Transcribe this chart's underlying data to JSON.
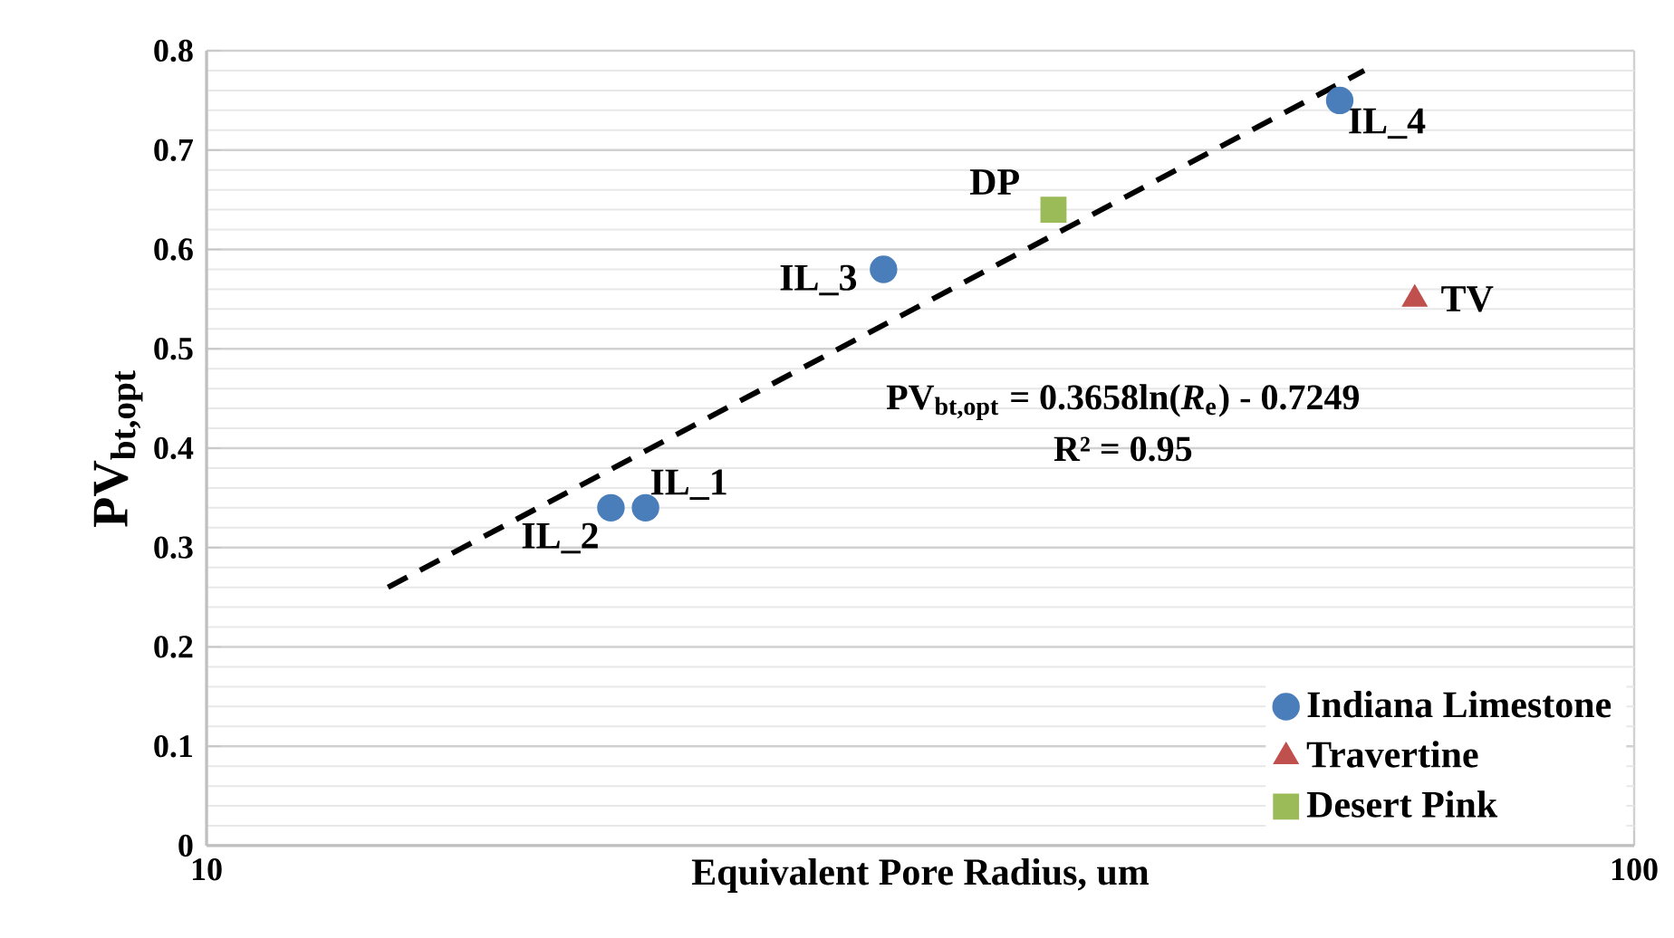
{
  "chart_data": {
    "type": "scatter",
    "xlabel": "Equivalent Pore Radius, um",
    "ylabel": "PV$_{bt,opt}$",
    "log": "x",
    "xlim": [
      10,
      100
    ],
    "xticks": [
      10,
      100
    ],
    "ylim": [
      0,
      0.8
    ],
    "yticks": [
      0,
      0.1,
      0.2,
      0.3,
      0.4,
      0.5,
      0.6,
      0.7,
      0.8
    ],
    "grid": true,
    "legend": "bottom right",
    "series": [
      {
        "name": "Indiana Limestone",
        "color": "#4a7ebb",
        "marker": "circle",
        "x": [
          20.3,
          19.2,
          29.8,
          62.2
        ],
        "values": [
          0.34,
          0.34,
          0.58,
          0.75
        ]
      },
      {
        "name": "Travertine",
        "color": "#c0504d",
        "marker": "triangle",
        "x": [
          70.2
        ],
        "values": [
          0.55
        ]
      },
      {
        "name": "Desert Pink",
        "color": "#9bbb59",
        "marker": "square",
        "x": [
          39.2
        ],
        "values": [
          0.64
        ]
      },
      {
        "type": "line",
        "color": "#000000",
        "line_style": "dashed",
        "marker": "none",
        "x": [
          13.4,
          64.7
        ],
        "values": [
          0.26,
          0.78
        ]
      }
    ],
    "annotations": [
      {
        "text": "IL_1",
        "x": 20.3,
        "y": 0.34
      },
      {
        "text": "IL_2",
        "x": 19.2,
        "y": 0.34
      },
      {
        "text": "IL_3",
        "x": 29.8,
        "y": 0.58
      },
      {
        "text": "IL_4",
        "x": 62.2,
        "y": 0.75
      },
      {
        "text": "TV",
        "x": 70.2,
        "y": 0.55
      },
      {
        "text": "DP",
        "x": 39.2,
        "y": 0.64
      },
      "PV$_{bt,opt}$ = 0.3658ln(*R*$_{e}$) - 0.7249",
      "R² = 0.95"
    ]
  }
}
